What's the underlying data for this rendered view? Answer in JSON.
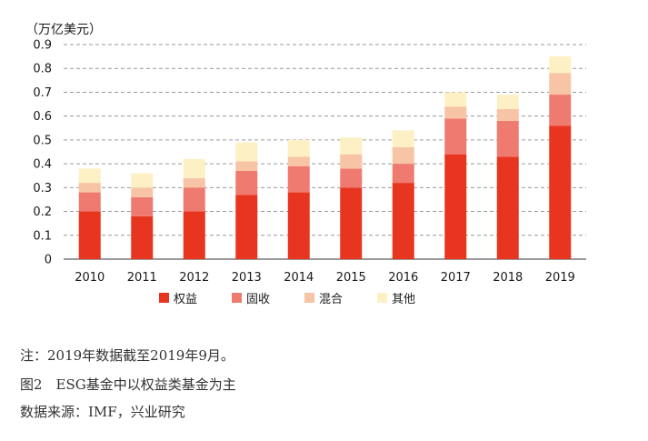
{
  "chart_data": {
    "type": "bar",
    "stacked": true,
    "title": "",
    "ylabel": "（万亿美元）",
    "xlabel": "",
    "ylim": [
      0,
      0.9
    ],
    "yticks": [
      "0",
      "0.1",
      "0.2",
      "0.3",
      "0.4",
      "0.5",
      "0.6",
      "0.7",
      "0.8",
      "0.9"
    ],
    "grid": "horizontal-dashed",
    "legend_position": "bottom",
    "categories": [
      "2010",
      "2011",
      "2012",
      "2013",
      "2014",
      "2015",
      "2016",
      "2017",
      "2018",
      "2019"
    ],
    "series": [
      {
        "name": "权益",
        "color": "#e8351f",
        "values": [
          0.2,
          0.18,
          0.2,
          0.27,
          0.28,
          0.3,
          0.32,
          0.44,
          0.43,
          0.56
        ]
      },
      {
        "name": "固收",
        "color": "#ef7a6f",
        "values": [
          0.08,
          0.08,
          0.1,
          0.1,
          0.11,
          0.08,
          0.08,
          0.15,
          0.15,
          0.13
        ]
      },
      {
        "name": "混合",
        "color": "#f8c4a6",
        "values": [
          0.04,
          0.04,
          0.04,
          0.04,
          0.04,
          0.06,
          0.07,
          0.05,
          0.05,
          0.09
        ]
      },
      {
        "name": "其他",
        "color": "#fdf0c4",
        "values": [
          0.06,
          0.06,
          0.08,
          0.08,
          0.07,
          0.07,
          0.07,
          0.06,
          0.06,
          0.07
        ]
      }
    ]
  },
  "captions": {
    "note": "注：2019年数据截至2019年9月。",
    "figure": "图2　ESG基金中以权益类基金为主",
    "source": "数据来源：IMF，兴业研究"
  }
}
